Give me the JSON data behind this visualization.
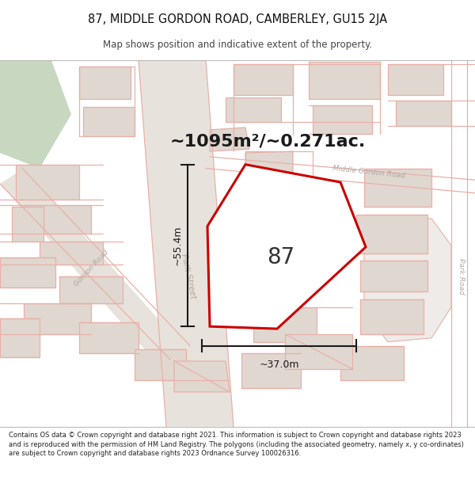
{
  "title_line1": "87, MIDDLE GORDON ROAD, CAMBERLEY, GU15 2JA",
  "title_line2": "Map shows position and indicative extent of the property.",
  "area_text": "~1095m²/~0.271ac.",
  "label_87": "87",
  "dim_height": "~55.4m",
  "dim_width": "~37.0m",
  "footer_text": "Contains OS data © Crown copyright and database right 2021. This information is subject to Crown copyright and database rights 2023 and is reproduced with the permission of HM Land Registry. The polygons (including the associated geometry, namely x, y co-ordinates) are subject to Crown copyright and database rights 2023 Ordnance Survey 100026316.",
  "bg_color": "#f7f4f2",
  "road_fill": "#e8e2dc",
  "building_fill": "#e0d8d0",
  "building_edge": "#c8b8b0",
  "road_outline": "#e8b0a8",
  "plot_outline": "#cc0000",
  "plot_fill": "#ffffff",
  "green_fill": "#c8d8c0",
  "dim_color": "#1a1a1a",
  "text_dark": "#1a1a1a",
  "text_road": "#aaaaaa",
  "title_color": "#111111",
  "footer_color": "#222222"
}
